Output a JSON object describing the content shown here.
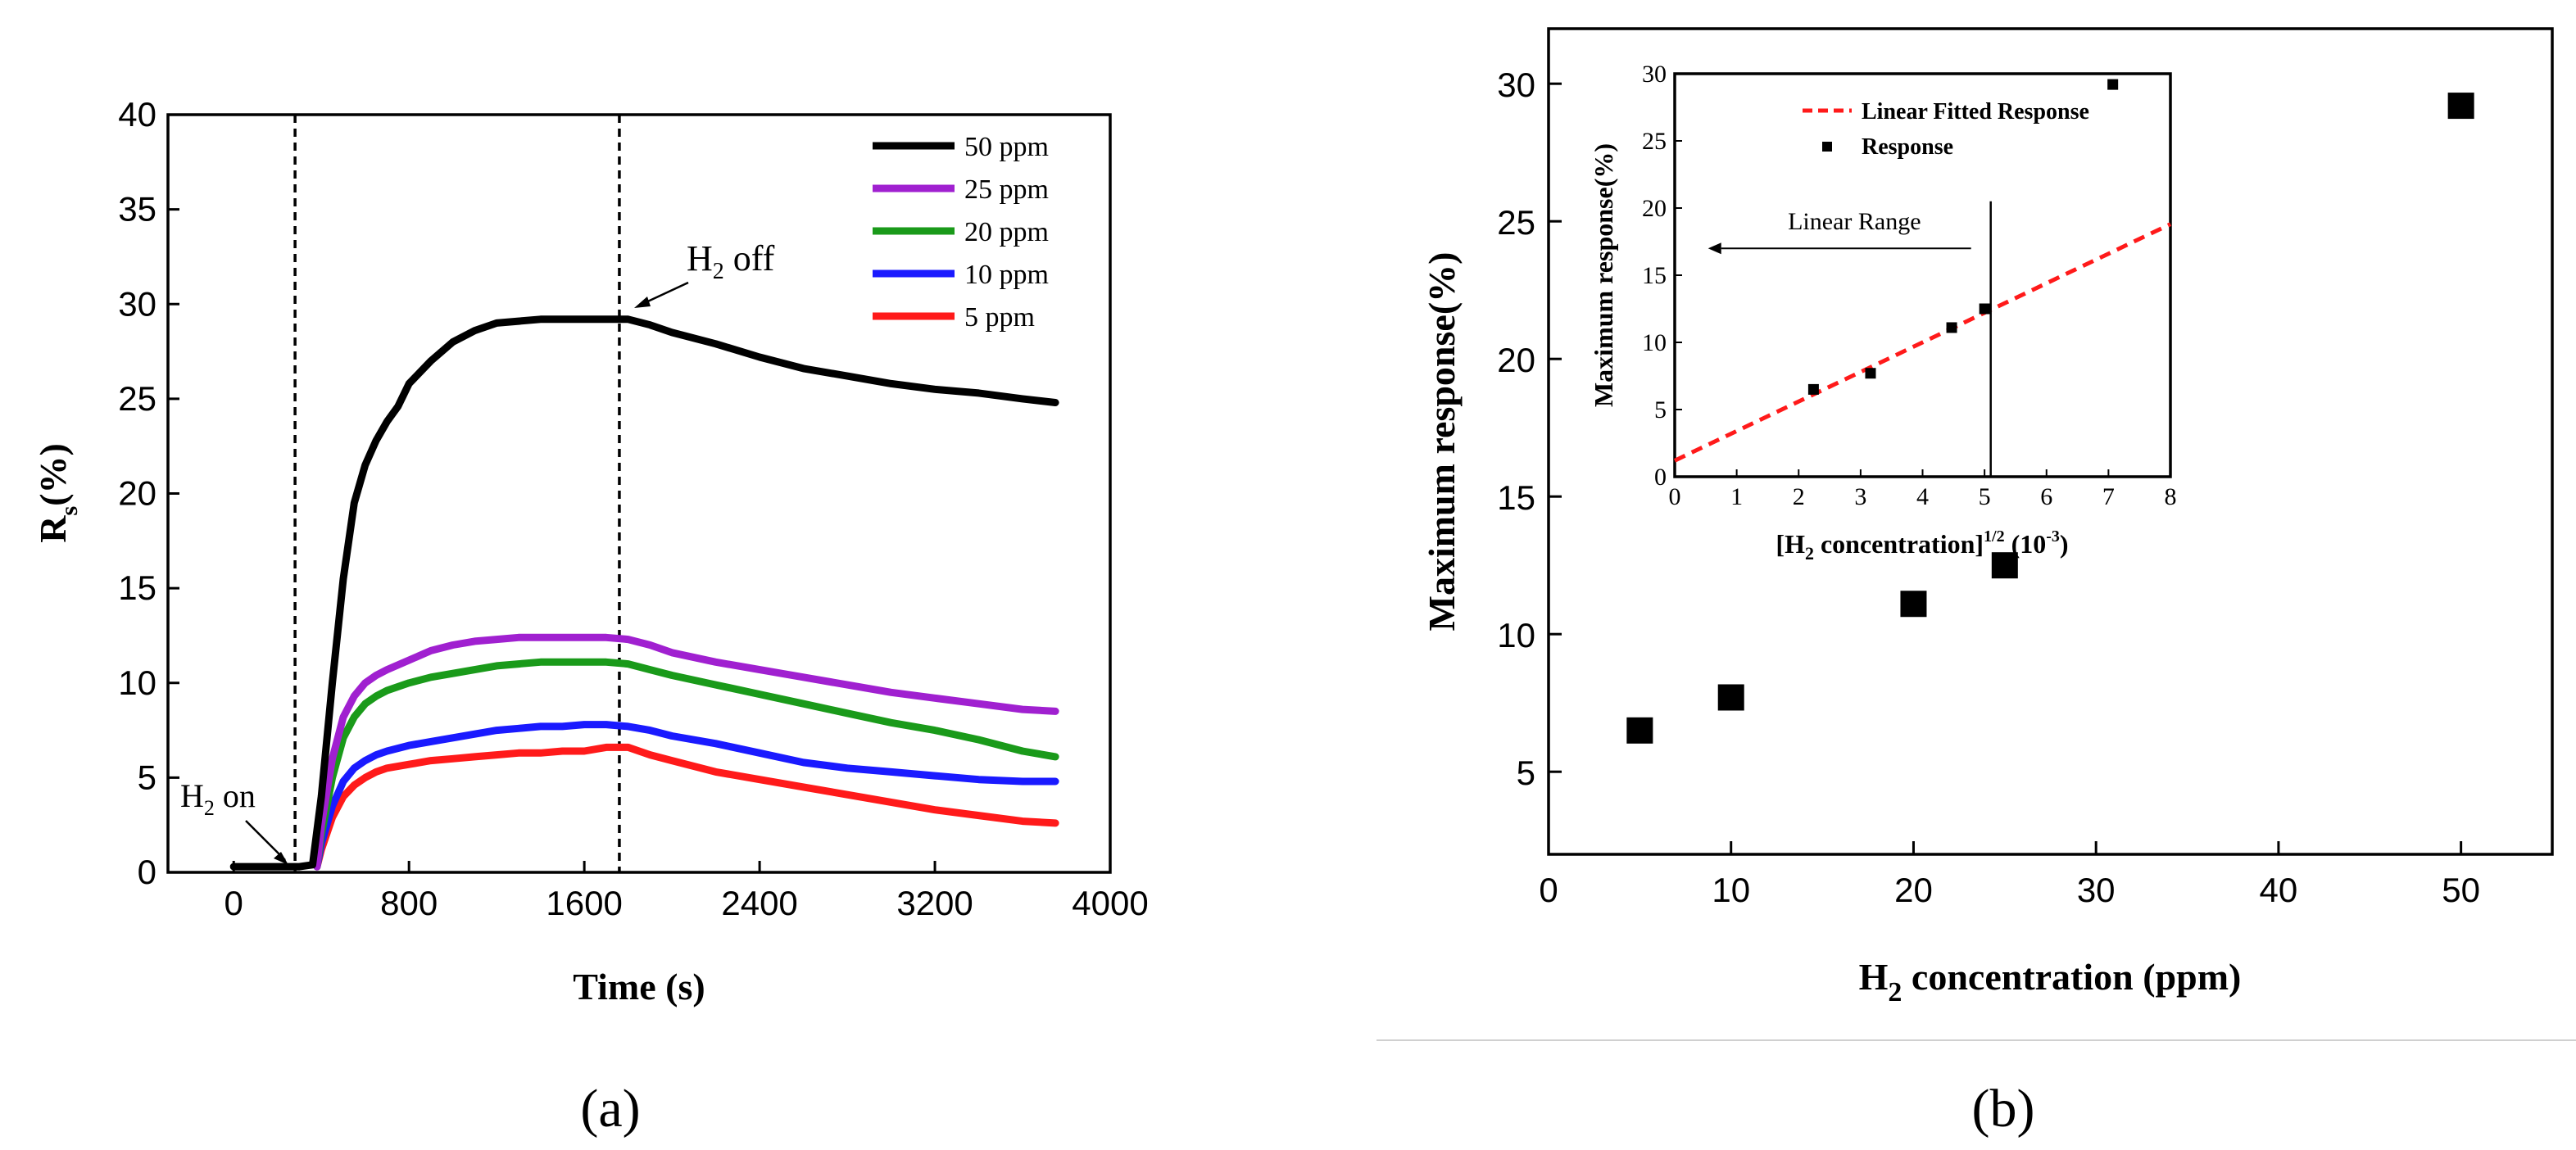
{
  "panel_labels": {
    "a": "(a)",
    "b": "(b)"
  },
  "chart_data": [
    {
      "type": "line",
      "panel": "a",
      "title": "",
      "xlabel": "Time (s)",
      "ylabel": "R_s (%)",
      "ylabel_main": "R",
      "ylabel_sub": "s",
      "ylabel_tail": "(%)",
      "xlim": [
        -300,
        4000
      ],
      "ylim": [
        0,
        40
      ],
      "xticks": [
        0,
        800,
        1600,
        2400,
        3200,
        4000
      ],
      "yticks": [
        0,
        5,
        10,
        15,
        20,
        25,
        30,
        35,
        40
      ],
      "vlines": [
        280,
        1760
      ],
      "annotations": {
        "h2_on": {
          "main": "H",
          "sub": "2",
          "tail": " on"
        },
        "h2_off": {
          "main": "H",
          "sub": "2",
          "tail": " off"
        }
      },
      "legend_position": "top-right",
      "series": [
        {
          "name": "50 ppm",
          "color": "#000000",
          "x": [
            0,
            100,
            200,
            300,
            360,
            400,
            450,
            500,
            550,
            600,
            650,
            700,
            750,
            800,
            900,
            1000,
            1100,
            1200,
            1300,
            1400,
            1500,
            1600,
            1700,
            1800,
            1900,
            2000,
            2200,
            2400,
            2600,
            2800,
            3000,
            3200,
            3400,
            3600,
            3750
          ],
          "y": [
            0.3,
            0.3,
            0.3,
            0.3,
            0.4,
            4,
            10,
            15.5,
            19.5,
            21.5,
            22.8,
            23.8,
            24.6,
            25.8,
            27,
            28,
            28.6,
            29,
            29.1,
            29.2,
            29.2,
            29.2,
            29.2,
            29.2,
            28.9,
            28.5,
            27.9,
            27.2,
            26.6,
            26.2,
            25.8,
            25.5,
            25.3,
            25.0,
            24.8
          ]
        },
        {
          "name": "25 ppm",
          "color": "#a020d0",
          "x": [
            380,
            400,
            450,
            500,
            550,
            600,
            650,
            700,
            800,
            900,
            1000,
            1100,
            1200,
            1300,
            1400,
            1500,
            1600,
            1700,
            1800,
            1900,
            2000,
            2200,
            2400,
            2600,
            2800,
            3000,
            3200,
            3400,
            3600,
            3750
          ],
          "y": [
            0.3,
            2.5,
            6,
            8.2,
            9.3,
            10,
            10.4,
            10.7,
            11.2,
            11.7,
            12.0,
            12.2,
            12.3,
            12.4,
            12.4,
            12.4,
            12.4,
            12.4,
            12.3,
            12.0,
            11.6,
            11.1,
            10.7,
            10.3,
            9.9,
            9.5,
            9.2,
            8.9,
            8.6,
            8.5
          ]
        },
        {
          "name": "20 ppm",
          "color": "#1a9a1a",
          "x": [
            380,
            400,
            450,
            500,
            550,
            600,
            650,
            700,
            800,
            900,
            1000,
            1100,
            1200,
            1300,
            1400,
            1500,
            1600,
            1700,
            1800,
            1900,
            2000,
            2200,
            2400,
            2600,
            2800,
            3000,
            3200,
            3400,
            3600,
            3750
          ],
          "y": [
            0.3,
            2,
            5,
            7.1,
            8.2,
            8.9,
            9.3,
            9.6,
            10.0,
            10.3,
            10.5,
            10.7,
            10.9,
            11.0,
            11.1,
            11.1,
            11.1,
            11.1,
            11.0,
            10.7,
            10.4,
            9.9,
            9.4,
            8.9,
            8.4,
            7.9,
            7.5,
            7.0,
            6.4,
            6.1
          ]
        },
        {
          "name": "10 ppm",
          "color": "#1a1aff",
          "x": [
            380,
            400,
            450,
            500,
            550,
            600,
            650,
            700,
            800,
            900,
            1000,
            1100,
            1200,
            1300,
            1400,
            1500,
            1600,
            1700,
            1800,
            1900,
            2000,
            2200,
            2400,
            2600,
            2800,
            3000,
            3200,
            3400,
            3600,
            3750
          ],
          "y": [
            0.3,
            1.5,
            3.5,
            4.8,
            5.5,
            5.9,
            6.2,
            6.4,
            6.7,
            6.9,
            7.1,
            7.3,
            7.5,
            7.6,
            7.7,
            7.7,
            7.8,
            7.8,
            7.7,
            7.5,
            7.2,
            6.8,
            6.3,
            5.8,
            5.5,
            5.3,
            5.1,
            4.9,
            4.8,
            4.8
          ]
        },
        {
          "name": " 5  ppm",
          "color": "#ff1a1a",
          "x": [
            380,
            400,
            450,
            500,
            550,
            600,
            650,
            700,
            800,
            900,
            1000,
            1100,
            1200,
            1300,
            1400,
            1500,
            1600,
            1700,
            1800,
            1900,
            2000,
            2200,
            2400,
            2600,
            2800,
            3000,
            3200,
            3400,
            3600,
            3750
          ],
          "y": [
            0.3,
            1.2,
            2.9,
            4.0,
            4.6,
            5.0,
            5.3,
            5.5,
            5.7,
            5.9,
            6.0,
            6.1,
            6.2,
            6.3,
            6.3,
            6.4,
            6.4,
            6.6,
            6.6,
            6.2,
            5.9,
            5.3,
            4.9,
            4.5,
            4.1,
            3.7,
            3.3,
            3.0,
            2.7,
            2.6
          ]
        }
      ]
    },
    {
      "type": "scatter",
      "panel": "b",
      "title": "",
      "xlabel_main": "H",
      "xlabel_sub": "2",
      "xlabel_tail": " concentration (ppm)",
      "ylabel": "Maximum response(%)",
      "xlim": [
        0,
        55
      ],
      "ylim": [
        2,
        32
      ],
      "xticks": [
        0,
        10,
        20,
        30,
        40,
        50
      ],
      "yticks": [
        5,
        10,
        15,
        20,
        25,
        30
      ],
      "x": [
        5,
        10,
        20,
        25,
        50
      ],
      "y": [
        6.5,
        7.7,
        11.1,
        12.5,
        29.2
      ]
    },
    {
      "type": "scatter",
      "panel": "b-inset",
      "title": "",
      "xlabel_main": "[H",
      "xlabel_sub": "2",
      "xlabel_mid": " concentration]",
      "xlabel_sup": "1/2",
      "xlabel_tail": "  (10",
      "xlabel_exp": "-3",
      "xlabel_end": ")",
      "ylabel": "Maximum response(%)",
      "xlim": [
        0,
        8
      ],
      "ylim": [
        0,
        30
      ],
      "xticks": [
        0,
        1,
        2,
        3,
        4,
        5,
        6,
        7,
        8
      ],
      "yticks": [
        0,
        5,
        10,
        15,
        20,
        25,
        30
      ],
      "x": [
        2.24,
        3.16,
        4.47,
        5.0,
        7.07
      ],
      "y": [
        6.5,
        7.7,
        11.1,
        12.5,
        29.2
      ],
      "fit": {
        "name": "Linear Fitted Response",
        "slope": 2.2,
        "intercept": 1.2,
        "color": "#ff1a1a"
      },
      "points_label": "Response",
      "linear_range_label": "Linear Range",
      "linear_range_limit": 5.1,
      "legend_position": "top-right"
    }
  ]
}
